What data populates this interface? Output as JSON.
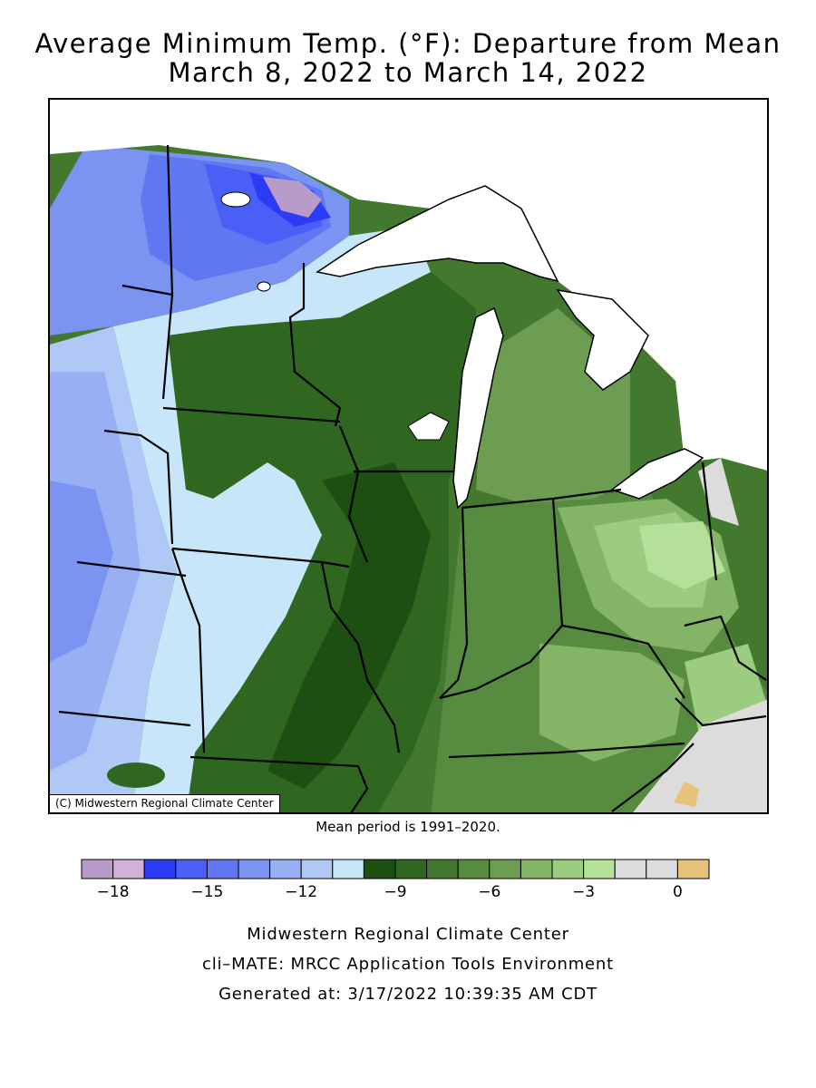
{
  "title": {
    "line1": "Average Minimum Temp. (°F): Departure from Mean",
    "line2": "March 8, 2022 to March 14, 2022"
  },
  "map": {
    "copyright": "(C) Midwestern Regional Climate Center",
    "mean_period_note": "Mean period is 1991–2020."
  },
  "legend": {
    "bins": [
      {
        "color": "#b99bc9"
      },
      {
        "color": "#cfb1d9"
      },
      {
        "color": "#2a3cf5"
      },
      {
        "color": "#4a5ff5"
      },
      {
        "color": "#5f78f2"
      },
      {
        "color": "#7b93f1"
      },
      {
        "color": "#98b0f3"
      },
      {
        "color": "#afc8f5"
      },
      {
        "color": "#c8e6fa"
      },
      {
        "color": "#1d4e12"
      },
      {
        "color": "#2f6720"
      },
      {
        "color": "#43792f"
      },
      {
        "color": "#578b40"
      },
      {
        "color": "#6c9d52"
      },
      {
        "color": "#84b466"
      },
      {
        "color": "#9ccc80"
      },
      {
        "color": "#b5e09a"
      },
      {
        "color": "#dcdcdc"
      },
      {
        "color": "#dcdcdc"
      },
      {
        "color": "#e6c27a"
      }
    ],
    "tick_labels": [
      "-18",
      "-15",
      "-12",
      "-9",
      "-6",
      "-3",
      "0"
    ]
  },
  "footer": {
    "line1": "Midwestern Regional Climate Center",
    "line2": "cli–MATE: MRCC Application Tools Environment",
    "line3": "Generated at: 3/17/2022 10:39:35 AM CDT"
  }
}
